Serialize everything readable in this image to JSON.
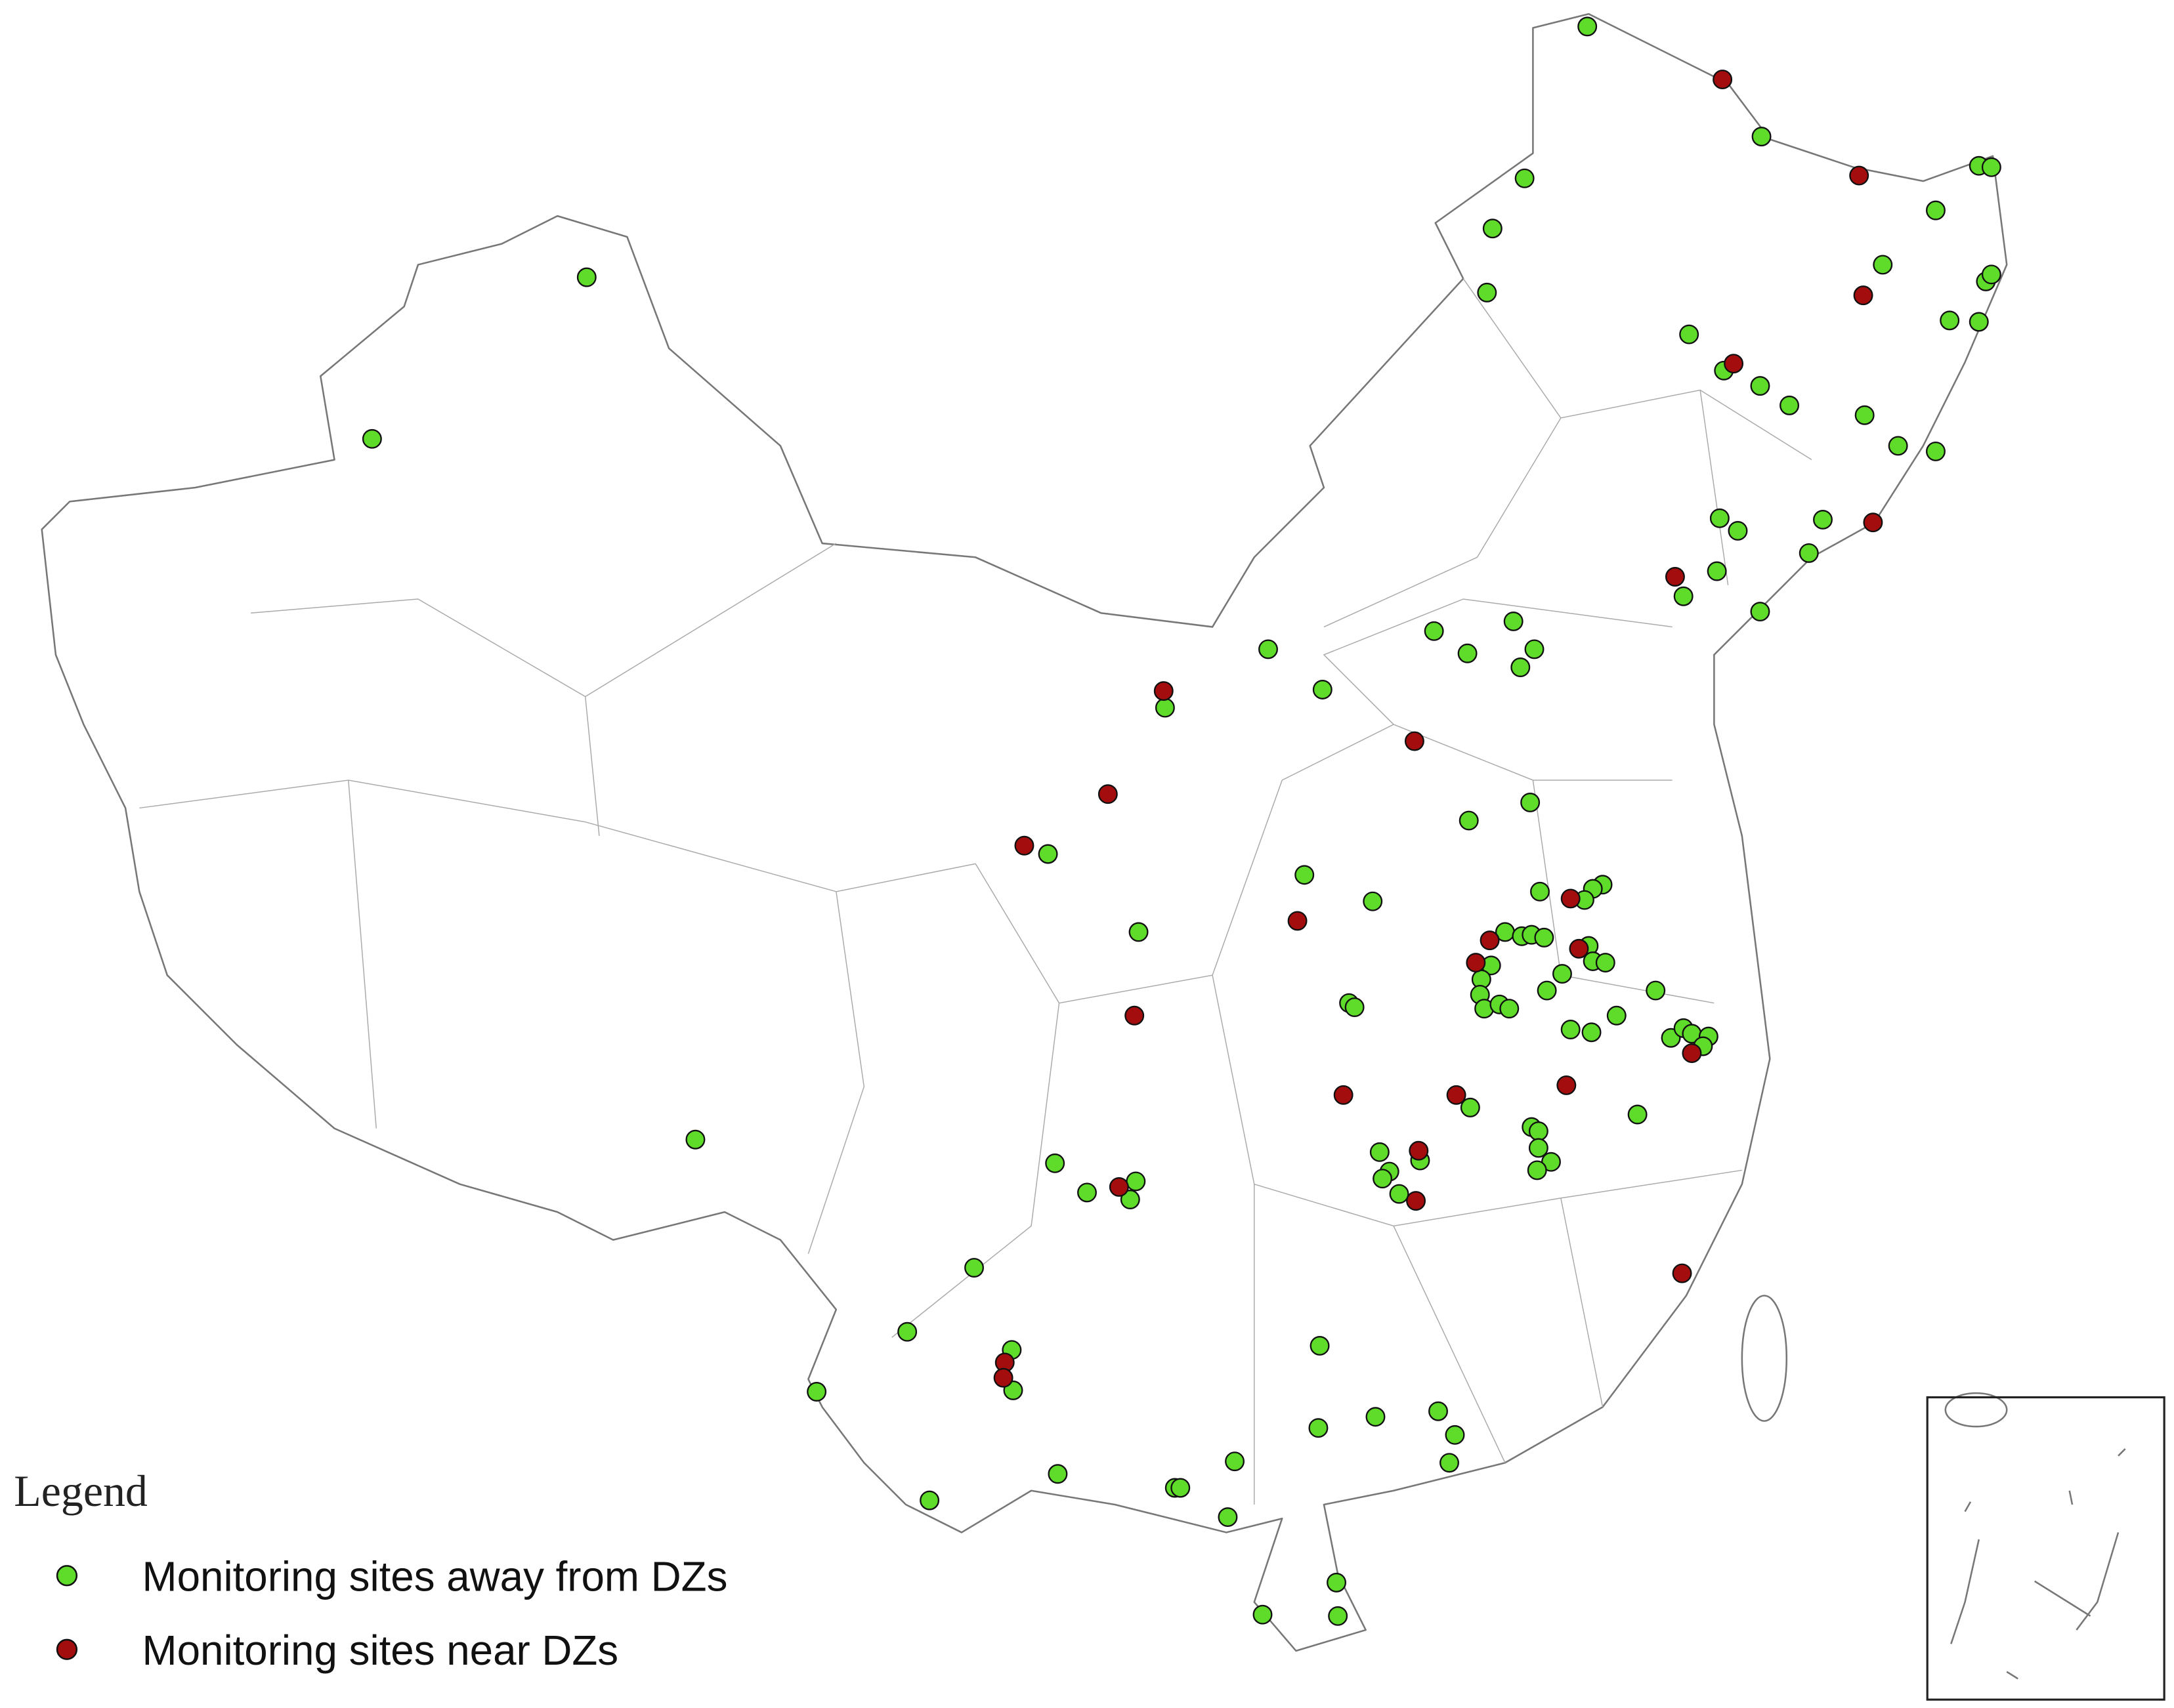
{
  "legend": {
    "title": "Legend",
    "items": [
      {
        "label": "Monitoring sites away from DZs",
        "color": "#5fdc2a"
      },
      {
        "label": "Monitoring sites near DZs",
        "color": "#a30d0d"
      }
    ]
  }
}
